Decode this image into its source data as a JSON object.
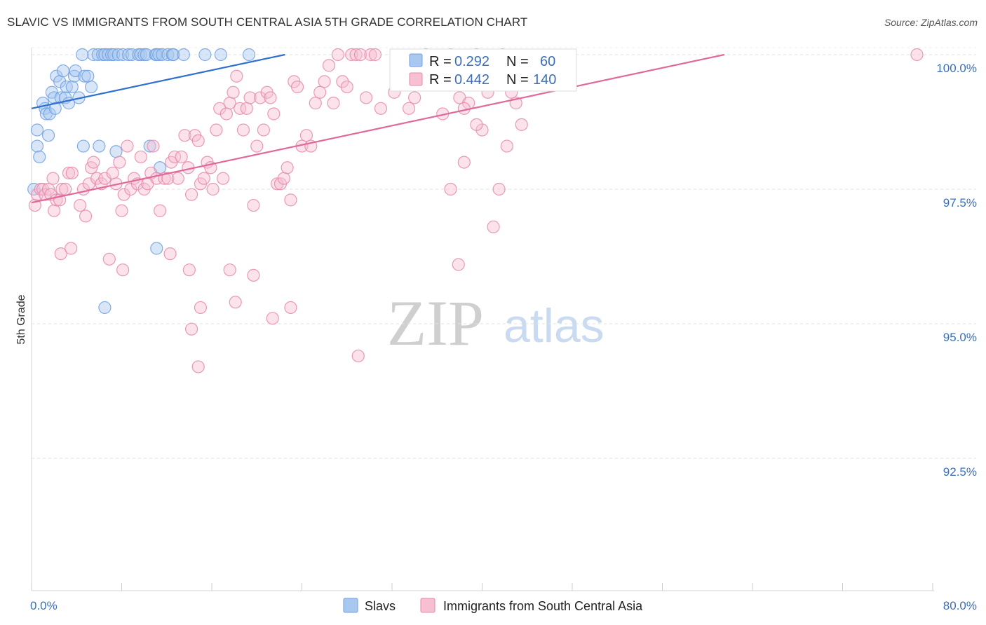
{
  "chart_data": {
    "type": "scatter",
    "title": "SLAVIC VS IMMIGRANTS FROM SOUTH CENTRAL ASIA 5TH GRADE CORRELATION CHART",
    "source": "Source: ZipAtlas.com",
    "ylabel": "5th Grade",
    "xlim": [
      0,
      80
    ],
    "ylim": [
      90.2,
      100.4
    ],
    "x_tick_labels": [
      "0.0%",
      "80.0%"
    ],
    "y_ticks": [
      100.0,
      97.5,
      95.0,
      92.5
    ],
    "y_tick_labels": [
      "100.0%",
      "97.5%",
      "95.0%",
      "92.5%"
    ],
    "watermark": {
      "zip": "ZIP",
      "atlas": "atlas"
    },
    "legend": {
      "r_label": "R =",
      "n_label": "N =",
      "entries": [
        {
          "r": "0.292",
          "n": "60"
        },
        {
          "r": "0.442",
          "n": "140"
        }
      ]
    },
    "series": [
      {
        "name": "Slavs",
        "color": "#6fa0e0",
        "fill": "#a9c8f0",
        "trend": {
          "x": [
            0.0,
            22.5
          ],
          "y": [
            99.0,
            100.0
          ]
        },
        "points": [
          [
            0.2,
            97.5
          ],
          [
            0.5,
            98.6
          ],
          [
            0.5,
            98.3
          ],
          [
            0.7,
            98.1
          ],
          [
            1.0,
            99.1
          ],
          [
            1.2,
            99.0
          ],
          [
            1.3,
            98.9
          ],
          [
            1.5,
            98.5
          ],
          [
            1.6,
            98.9
          ],
          [
            1.8,
            99.3
          ],
          [
            2.0,
            99.2
          ],
          [
            2.1,
            99.0
          ],
          [
            2.2,
            99.6
          ],
          [
            2.5,
            99.5
          ],
          [
            2.6,
            99.2
          ],
          [
            2.8,
            99.7
          ],
          [
            3.0,
            99.2
          ],
          [
            3.1,
            99.4
          ],
          [
            3.3,
            99.1
          ],
          [
            3.6,
            99.4
          ],
          [
            3.8,
            99.6
          ],
          [
            3.9,
            99.7
          ],
          [
            4.2,
            99.2
          ],
          [
            4.5,
            100.0
          ],
          [
            4.7,
            99.6
          ],
          [
            5.0,
            99.6
          ],
          [
            5.3,
            99.4
          ],
          [
            4.6,
            98.3
          ],
          [
            5.5,
            100.0
          ],
          [
            5.9,
            100.0
          ],
          [
            6.0,
            98.3
          ],
          [
            6.3,
            100.0
          ],
          [
            6.5,
            100.0
          ],
          [
            6.8,
            100.0
          ],
          [
            7.1,
            100.0
          ],
          [
            7.3,
            100.0
          ],
          [
            7.5,
            98.2
          ],
          [
            7.7,
            100.0
          ],
          [
            8.1,
            100.0
          ],
          [
            8.6,
            100.0
          ],
          [
            8.9,
            100.0
          ],
          [
            9.5,
            100.0
          ],
          [
            10.5,
            98.3
          ],
          [
            9.7,
            100.0
          ],
          [
            10.0,
            100.0
          ],
          [
            10.2,
            100.0
          ],
          [
            11.0,
            100.0
          ],
          [
            11.1,
            100.0
          ],
          [
            11.3,
            100.0
          ],
          [
            11.6,
            100.0
          ],
          [
            12.1,
            100.0
          ],
          [
            12.5,
            100.0
          ],
          [
            11.4,
            97.9
          ],
          [
            11.1,
            96.4
          ],
          [
            6.5,
            95.3
          ],
          [
            12.6,
            100.0
          ],
          [
            13.5,
            100.0
          ],
          [
            15.4,
            100.0
          ],
          [
            16.8,
            100.0
          ],
          [
            19.3,
            100.0
          ]
        ]
      },
      {
        "name": "Immigrants from South Central Asia",
        "color": "#e58aaa",
        "fill": "#f6bfd2",
        "trend": {
          "x": [
            0.0,
            61.5
          ],
          "y": [
            97.25,
            100.0
          ]
        },
        "points": [
          [
            0.3,
            97.2
          ],
          [
            0.5,
            97.4
          ],
          [
            0.8,
            97.5
          ],
          [
            1.0,
            97.5
          ],
          [
            1.2,
            97.4
          ],
          [
            1.5,
            97.5
          ],
          [
            1.7,
            97.4
          ],
          [
            2.0,
            97.1
          ],
          [
            2.2,
            97.3
          ],
          [
            2.5,
            97.3
          ],
          [
            2.7,
            97.5
          ],
          [
            3.0,
            97.5
          ],
          [
            3.3,
            97.8
          ],
          [
            3.6,
            97.8
          ],
          [
            1.9,
            97.7
          ],
          [
            2.6,
            96.3
          ],
          [
            3.5,
            96.4
          ],
          [
            4.3,
            97.2
          ],
          [
            4.6,
            97.5
          ],
          [
            4.8,
            97.0
          ],
          [
            5.1,
            97.6
          ],
          [
            5.3,
            97.9
          ],
          [
            5.5,
            98.0
          ],
          [
            5.8,
            97.7
          ],
          [
            6.2,
            97.6
          ],
          [
            6.5,
            97.7
          ],
          [
            6.9,
            96.2
          ],
          [
            7.2,
            97.8
          ],
          [
            7.5,
            97.6
          ],
          [
            7.8,
            98.0
          ],
          [
            8.0,
            97.1
          ],
          [
            8.2,
            97.4
          ],
          [
            8.5,
            98.3
          ],
          [
            8.8,
            97.5
          ],
          [
            9.1,
            97.7
          ],
          [
            9.4,
            97.6
          ],
          [
            9.7,
            98.1
          ],
          [
            10.0,
            97.5
          ],
          [
            10.3,
            97.6
          ],
          [
            10.6,
            97.8
          ],
          [
            10.8,
            98.3
          ],
          [
            11.1,
            97.7
          ],
          [
            11.4,
            97.1
          ],
          [
            11.8,
            97.7
          ],
          [
            12.1,
            97.7
          ],
          [
            12.4,
            98.0
          ],
          [
            12.7,
            98.1
          ],
          [
            13.0,
            97.7
          ],
          [
            13.3,
            98.1
          ],
          [
            13.6,
            98.5
          ],
          [
            13.9,
            97.9
          ],
          [
            14.2,
            97.4
          ],
          [
            14.5,
            98.5
          ],
          [
            14.8,
            98.4
          ],
          [
            15.0,
            97.6
          ],
          [
            15.3,
            97.7
          ],
          [
            15.6,
            98.0
          ],
          [
            15.9,
            97.9
          ],
          [
            16.1,
            97.5
          ],
          [
            16.4,
            98.6
          ],
          [
            16.7,
            99.0
          ],
          [
            17.0,
            97.7
          ],
          [
            17.3,
            98.9
          ],
          [
            17.6,
            99.1
          ],
          [
            17.9,
            99.3
          ],
          [
            18.2,
            99.6
          ],
          [
            18.5,
            99.0
          ],
          [
            18.8,
            98.6
          ],
          [
            19.1,
            99.0
          ],
          [
            19.4,
            99.2
          ],
          [
            19.7,
            97.2
          ],
          [
            20.0,
            98.3
          ],
          [
            20.3,
            99.2
          ],
          [
            20.6,
            98.6
          ],
          [
            20.9,
            99.3
          ],
          [
            21.2,
            99.2
          ],
          [
            21.5,
            98.9
          ],
          [
            21.8,
            97.6
          ],
          [
            22.1,
            97.6
          ],
          [
            22.4,
            97.7
          ],
          [
            22.7,
            97.9
          ],
          [
            23.0,
            97.3
          ],
          [
            23.3,
            99.5
          ],
          [
            23.6,
            99.4
          ],
          [
            24.0,
            98.3
          ],
          [
            24.4,
            98.5
          ],
          [
            24.8,
            98.3
          ],
          [
            25.2,
            99.1
          ],
          [
            25.6,
            99.3
          ],
          [
            26.0,
            99.5
          ],
          [
            26.4,
            99.8
          ],
          [
            26.8,
            99.1
          ],
          [
            27.2,
            100.0
          ],
          [
            27.6,
            99.5
          ],
          [
            28.0,
            99.4
          ],
          [
            28.4,
            100.0
          ],
          [
            28.8,
            100.0
          ],
          [
            29.2,
            100.0
          ],
          [
            29.7,
            99.2
          ],
          [
            30.1,
            100.0
          ],
          [
            30.5,
            100.0
          ],
          [
            31.0,
            99.0
          ],
          [
            32.2,
            99.3
          ],
          [
            32.8,
            99.5
          ],
          [
            33.5,
            99.0
          ],
          [
            34.0,
            99.2
          ],
          [
            35.0,
            100.0
          ],
          [
            36.5,
            98.9
          ],
          [
            37.2,
            100.0
          ],
          [
            38.0,
            99.2
          ],
          [
            38.8,
            99.1
          ],
          [
            39.5,
            100.0
          ],
          [
            40.0,
            98.6
          ],
          [
            40.5,
            99.3
          ],
          [
            41.5,
            97.5
          ],
          [
            41.8,
            100.0
          ],
          [
            42.2,
            98.3
          ],
          [
            42.6,
            99.3
          ],
          [
            43.0,
            99.1
          ],
          [
            43.5,
            98.7
          ],
          [
            38.4,
            99.0
          ],
          [
            8.1,
            96.0
          ],
          [
            12.3,
            96.3
          ],
          [
            14.0,
            96.0
          ],
          [
            15.0,
            95.3
          ],
          [
            14.2,
            94.9
          ],
          [
            14.8,
            94.2
          ],
          [
            17.6,
            96.0
          ],
          [
            18.1,
            95.4
          ],
          [
            19.7,
            95.9
          ],
          [
            21.4,
            95.1
          ],
          [
            23.0,
            95.3
          ],
          [
            29.0,
            94.4
          ],
          [
            37.2,
            97.5
          ],
          [
            37.9,
            96.1
          ],
          [
            38.4,
            98.0
          ],
          [
            39.5,
            98.7
          ],
          [
            41.0,
            96.8
          ],
          [
            78.6,
            100.0
          ]
        ]
      }
    ]
  },
  "bottom_legend": [
    "Slavs",
    "Immigrants from South Central Asia"
  ]
}
